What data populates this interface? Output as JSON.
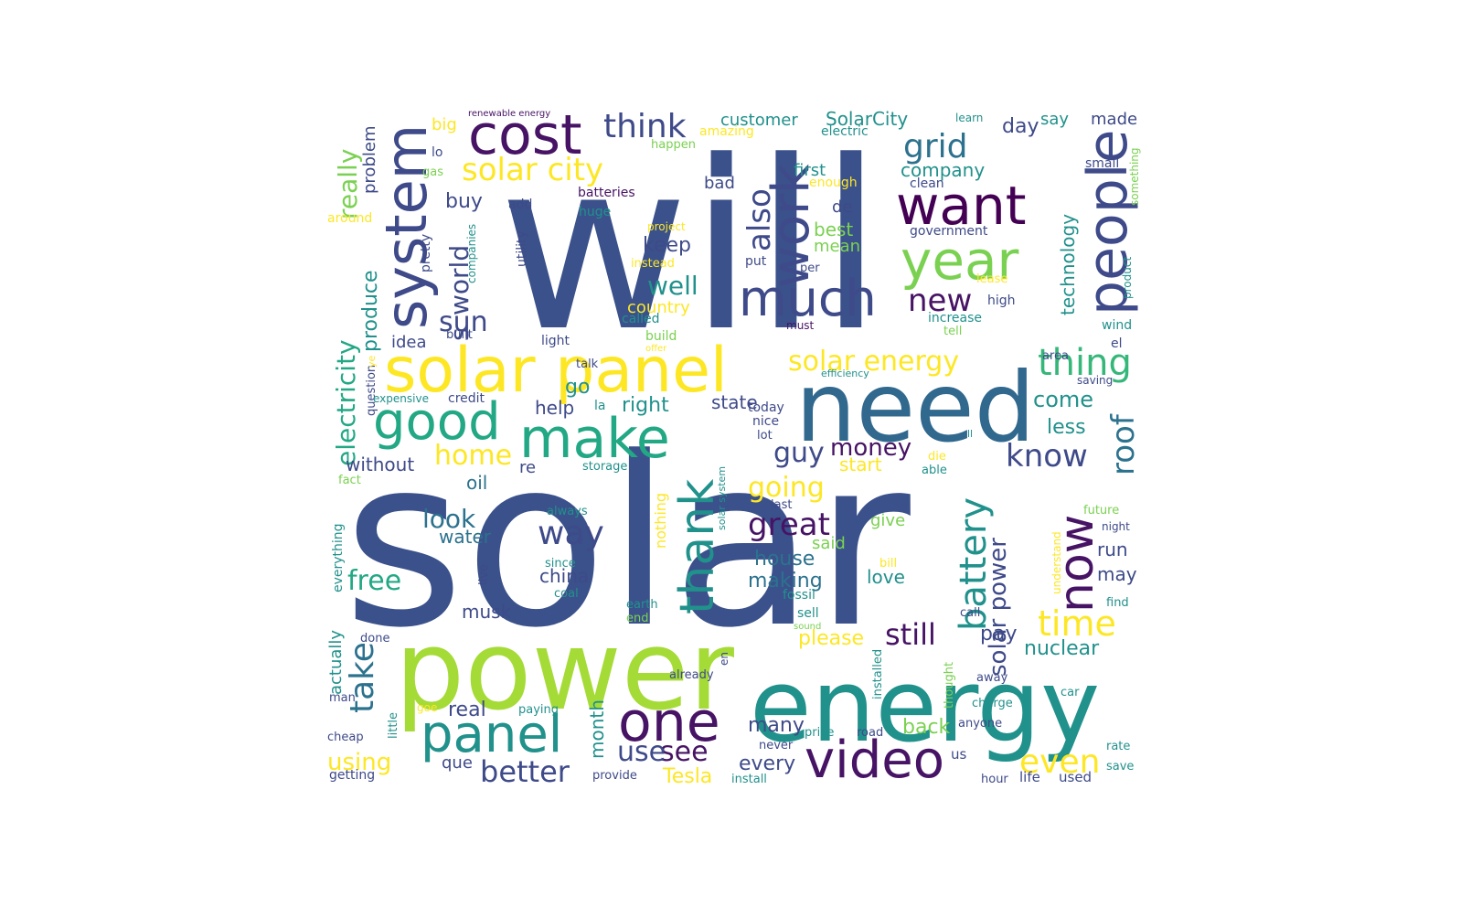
{
  "word_cloud": {
    "palette": {
      "indigo": "#3b518b",
      "navy": "#3e4a89",
      "purple": "#471365",
      "darkpurple": "#440154",
      "blue": "#31688e",
      "steel": "#2c728e",
      "teal": "#21918c",
      "green": "#22a884",
      "lightgreen": "#35b779",
      "lime": "#7ad151",
      "yellowgreen": "#a5db36",
      "yellow": "#fde725"
    },
    "words": [
      {
        "text": "will",
        "color": "indigo"
      },
      {
        "text": "solar",
        "color": "indigo"
      },
      {
        "text": "power",
        "color": "yellowgreen"
      },
      {
        "text": "energy",
        "color": "teal"
      },
      {
        "text": "need",
        "color": "blue"
      },
      {
        "text": "solar panel",
        "color": "yellow"
      },
      {
        "text": "cost",
        "color": "purple"
      },
      {
        "text": "system",
        "color": "navy"
      },
      {
        "text": "want",
        "color": "darkpurple"
      },
      {
        "text": "people",
        "color": "navy"
      },
      {
        "text": "year",
        "color": "lime"
      },
      {
        "text": "much",
        "color": "navy"
      },
      {
        "text": "work",
        "color": "navy"
      },
      {
        "text": "make",
        "color": "green"
      },
      {
        "text": "good",
        "color": "green"
      },
      {
        "text": "panel",
        "color": "teal"
      },
      {
        "text": "one",
        "color": "purple"
      },
      {
        "text": "video",
        "color": "purple"
      },
      {
        "text": "thank",
        "color": "teal"
      },
      {
        "text": "solar city",
        "color": "yellow"
      },
      {
        "text": "think",
        "color": "navy"
      },
      {
        "text": "grid",
        "color": "steel"
      },
      {
        "text": "battery",
        "color": "teal"
      },
      {
        "text": "now",
        "color": "purple"
      },
      {
        "text": "solar energy",
        "color": "yellow"
      },
      {
        "text": "thing",
        "color": "lightgreen"
      },
      {
        "text": "roof",
        "color": "steel"
      },
      {
        "text": "time",
        "color": "yellow"
      },
      {
        "text": "know",
        "color": "navy"
      },
      {
        "text": "also",
        "color": "navy"
      },
      {
        "text": "new",
        "color": "purple"
      },
      {
        "text": "take",
        "color": "steel"
      },
      {
        "text": "even",
        "color": "yellow"
      },
      {
        "text": "way",
        "color": "navy"
      },
      {
        "text": "great",
        "color": "purple"
      },
      {
        "text": "home",
        "color": "yellow"
      },
      {
        "text": "going",
        "color": "yellow"
      },
      {
        "text": "really",
        "color": "lime"
      },
      {
        "text": "electricity",
        "color": "green"
      },
      {
        "text": "better",
        "color": "navy"
      },
      {
        "text": "see",
        "color": "purple"
      },
      {
        "text": "use",
        "color": "navy"
      },
      {
        "text": "free",
        "color": "green"
      },
      {
        "text": "look",
        "color": "steel"
      },
      {
        "text": "still",
        "color": "purple"
      },
      {
        "text": "solar power",
        "color": "navy"
      },
      {
        "text": "guy",
        "color": "navy"
      },
      {
        "text": "money",
        "color": "purple"
      },
      {
        "text": "sun",
        "color": "navy"
      },
      {
        "text": "world",
        "color": "navy"
      },
      {
        "text": "s",
        "color": "navy"
      },
      {
        "text": "well",
        "color": "teal"
      },
      {
        "text": "using",
        "color": "yellow"
      },
      {
        "text": "nuclear",
        "color": "teal"
      },
      {
        "text": "SolarCity",
        "color": "teal"
      },
      {
        "text": "customer",
        "color": "teal"
      },
      {
        "text": "company",
        "color": "teal"
      },
      {
        "text": "day",
        "color": "navy"
      },
      {
        "text": "say",
        "color": "teal"
      },
      {
        "text": "made",
        "color": "navy"
      },
      {
        "text": "buy",
        "color": "navy"
      },
      {
        "text": "produce",
        "color": "teal"
      },
      {
        "text": "technology",
        "color": "teal"
      },
      {
        "text": "come",
        "color": "teal"
      },
      {
        "text": "less",
        "color": "teal"
      },
      {
        "text": "house",
        "color": "steel"
      },
      {
        "text": "making",
        "color": "steel"
      },
      {
        "text": "china",
        "color": "navy"
      },
      {
        "text": "pay",
        "color": "navy"
      },
      {
        "text": "run",
        "color": "navy"
      },
      {
        "text": "may",
        "color": "navy"
      },
      {
        "text": "love",
        "color": "teal"
      },
      {
        "text": "many",
        "color": "navy"
      },
      {
        "text": "every",
        "color": "navy"
      },
      {
        "text": "please",
        "color": "yellow"
      },
      {
        "text": "Tesla",
        "color": "yellow"
      },
      {
        "text": "back",
        "color": "lime"
      },
      {
        "text": "month",
        "color": "teal"
      },
      {
        "text": "help",
        "color": "navy"
      },
      {
        "text": "go",
        "color": "teal"
      },
      {
        "text": "right",
        "color": "teal"
      },
      {
        "text": "state",
        "color": "navy"
      },
      {
        "text": "keep",
        "color": "navy"
      },
      {
        "text": "best",
        "color": "lime"
      },
      {
        "text": "mean",
        "color": "lime"
      },
      {
        "text": "bad",
        "color": "navy"
      },
      {
        "text": "de",
        "color": "navy"
      },
      {
        "text": "first",
        "color": "teal"
      },
      {
        "text": "country",
        "color": "yellow"
      },
      {
        "text": "real",
        "color": "navy"
      },
      {
        "text": "que",
        "color": "navy"
      },
      {
        "text": "without",
        "color": "navy"
      },
      {
        "text": "oil",
        "color": "steel"
      },
      {
        "text": "idea",
        "color": "navy"
      },
      {
        "text": "water",
        "color": "steel"
      },
      {
        "text": "musk",
        "color": "navy"
      },
      {
        "text": "start",
        "color": "yellow"
      },
      {
        "text": "give",
        "color": "lime"
      },
      {
        "text": "said",
        "color": "lime"
      },
      {
        "text": "re",
        "color": "navy"
      },
      {
        "text": "actually",
        "color": "teal"
      },
      {
        "text": "everything",
        "color": "teal"
      },
      {
        "text": "big",
        "color": "yellow"
      },
      {
        "text": "lo",
        "color": "navy"
      },
      {
        "text": "gas",
        "color": "lime"
      },
      {
        "text": "around",
        "color": "yellow"
      },
      {
        "text": "problem",
        "color": "navy"
      },
      {
        "text": "pretty",
        "color": "navy"
      },
      {
        "text": "companies",
        "color": "teal"
      },
      {
        "text": "utility",
        "color": "navy"
      },
      {
        "text": "add",
        "color": "navy"
      },
      {
        "text": "huge",
        "color": "teal"
      },
      {
        "text": "batteries",
        "color": "purple"
      },
      {
        "text": "happen",
        "color": "lime"
      },
      {
        "text": "amazing",
        "color": "yellow"
      },
      {
        "text": "renewable energy",
        "color": "purple"
      },
      {
        "text": "electric",
        "color": "teal"
      },
      {
        "text": "learn",
        "color": "teal"
      },
      {
        "text": "small",
        "color": "navy"
      },
      {
        "text": "something",
        "color": "lime"
      },
      {
        "text": "enough",
        "color": "yellow"
      },
      {
        "text": "clean",
        "color": "navy"
      },
      {
        "text": "government",
        "color": "navy"
      },
      {
        "text": "project",
        "color": "yellow"
      },
      {
        "text": "instead",
        "color": "yellow"
      },
      {
        "text": "put",
        "color": "navy"
      },
      {
        "text": "per",
        "color": "navy"
      },
      {
        "text": "lease",
        "color": "yellow"
      },
      {
        "text": "high",
        "color": "navy"
      },
      {
        "text": "increase",
        "color": "teal"
      },
      {
        "text": "tell",
        "color": "lime"
      },
      {
        "text": "product",
        "color": "teal"
      },
      {
        "text": "wind",
        "color": "teal"
      },
      {
        "text": "el",
        "color": "navy"
      },
      {
        "text": "must",
        "color": "purple"
      },
      {
        "text": "called",
        "color": "teal"
      },
      {
        "text": "built",
        "color": "navy"
      },
      {
        "text": "light",
        "color": "navy"
      },
      {
        "text": "build",
        "color": "lime"
      },
      {
        "text": "offer",
        "color": "yellow"
      },
      {
        "text": "talk",
        "color": "navy"
      },
      {
        "text": "efficiency",
        "color": "teal"
      },
      {
        "text": "area",
        "color": "navy"
      },
      {
        "text": "saving",
        "color": "navy"
      },
      {
        "text": "question",
        "color": "navy"
      },
      {
        "text": "ye",
        "color": "yellow"
      },
      {
        "text": "expensive",
        "color": "teal"
      },
      {
        "text": "credit",
        "color": "navy"
      },
      {
        "text": "la",
        "color": "teal"
      },
      {
        "text": "today",
        "color": "navy"
      },
      {
        "text": "nice",
        "color": "navy"
      },
      {
        "text": "lot",
        "color": "navy"
      },
      {
        "text": "ll",
        "color": "teal"
      },
      {
        "text": "die",
        "color": "yellow"
      },
      {
        "text": "able",
        "color": "teal"
      },
      {
        "text": "fact",
        "color": "lime"
      },
      {
        "text": "storage",
        "color": "teal"
      },
      {
        "text": "nothing",
        "color": "yellow"
      },
      {
        "text": "solar system",
        "color": "teal"
      },
      {
        "text": "last",
        "color": "navy"
      },
      {
        "text": "always",
        "color": "teal"
      },
      {
        "text": "since",
        "color": "teal"
      },
      {
        "text": "live",
        "color": "navy"
      },
      {
        "text": "coal",
        "color": "teal"
      },
      {
        "text": "fossil",
        "color": "teal"
      },
      {
        "text": "sell",
        "color": "teal"
      },
      {
        "text": "sound",
        "color": "lime"
      },
      {
        "text": "earth",
        "color": "teal"
      },
      {
        "text": "end",
        "color": "lime"
      },
      {
        "text": "bill",
        "color": "yellow"
      },
      {
        "text": "understand",
        "color": "yellow"
      },
      {
        "text": "future",
        "color": "lime"
      },
      {
        "text": "night",
        "color": "navy"
      },
      {
        "text": "find",
        "color": "teal"
      },
      {
        "text": "call",
        "color": "navy"
      },
      {
        "text": "installed",
        "color": "teal"
      },
      {
        "text": "thought",
        "color": "lime"
      },
      {
        "text": "away",
        "color": "navy"
      },
      {
        "text": "charge",
        "color": "teal"
      },
      {
        "text": "car",
        "color": "teal"
      },
      {
        "text": "en",
        "color": "navy"
      },
      {
        "text": "already",
        "color": "navy"
      },
      {
        "text": "anyone",
        "color": "navy"
      },
      {
        "text": "man",
        "color": "navy"
      },
      {
        "text": "little",
        "color": "teal"
      },
      {
        "text": "goe",
        "color": "yellow"
      },
      {
        "text": "paying",
        "color": "teal"
      },
      {
        "text": "done",
        "color": "navy"
      },
      {
        "text": "cheap",
        "color": "navy"
      },
      {
        "text": "getting",
        "color": "navy"
      },
      {
        "text": "provide",
        "color": "navy"
      },
      {
        "text": "install",
        "color": "teal"
      },
      {
        "text": "price",
        "color": "teal"
      },
      {
        "text": "road",
        "color": "navy"
      },
      {
        "text": "never",
        "color": "navy"
      },
      {
        "text": "us",
        "color": "navy"
      },
      {
        "text": "rate",
        "color": "teal"
      },
      {
        "text": "save",
        "color": "teal"
      },
      {
        "text": "hour",
        "color": "navy"
      },
      {
        "text": "life",
        "color": "navy"
      },
      {
        "text": "used",
        "color": "navy"
      }
    ]
  }
}
